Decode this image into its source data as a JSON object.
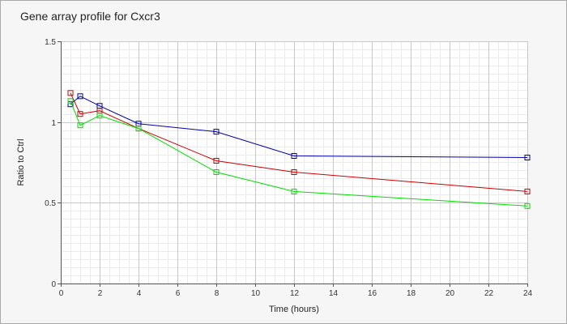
{
  "chart_data": {
    "type": "line",
    "title": "Gene array profile for Cxcr3",
    "xlabel": "Time (hours)",
    "ylabel": "Ratio to Ctrl",
    "xlim": [
      0,
      24
    ],
    "ylim": [
      0,
      1.5
    ],
    "xticks": [
      0,
      2,
      4,
      6,
      8,
      10,
      12,
      14,
      16,
      18,
      20,
      22,
      24
    ],
    "yticks": [
      0,
      0.5,
      1,
      1.5
    ],
    "ytick_labels": [
      "0",
      "0.5",
      "1",
      "1.5"
    ],
    "grid": true,
    "legend": "none",
    "series": [
      {
        "color": "#0000aa",
        "x": [
          0.5,
          1,
          2,
          4,
          8,
          12,
          24
        ],
        "values": [
          1.11,
          1.16,
          1.1,
          0.99,
          0.94,
          0.79,
          0.78
        ]
      },
      {
        "color": "#cc0000",
        "x": [
          0.5,
          1,
          2,
          4,
          8,
          12,
          24
        ],
        "values": [
          1.18,
          1.05,
          1.07,
          0.96,
          0.76,
          0.69,
          0.57
        ]
      },
      {
        "color": "#00dd00",
        "x": [
          0.5,
          1,
          2,
          4,
          8,
          12,
          24
        ],
        "values": [
          1.13,
          0.98,
          1.04,
          0.96,
          0.69,
          0.57,
          0.48
        ]
      }
    ]
  }
}
